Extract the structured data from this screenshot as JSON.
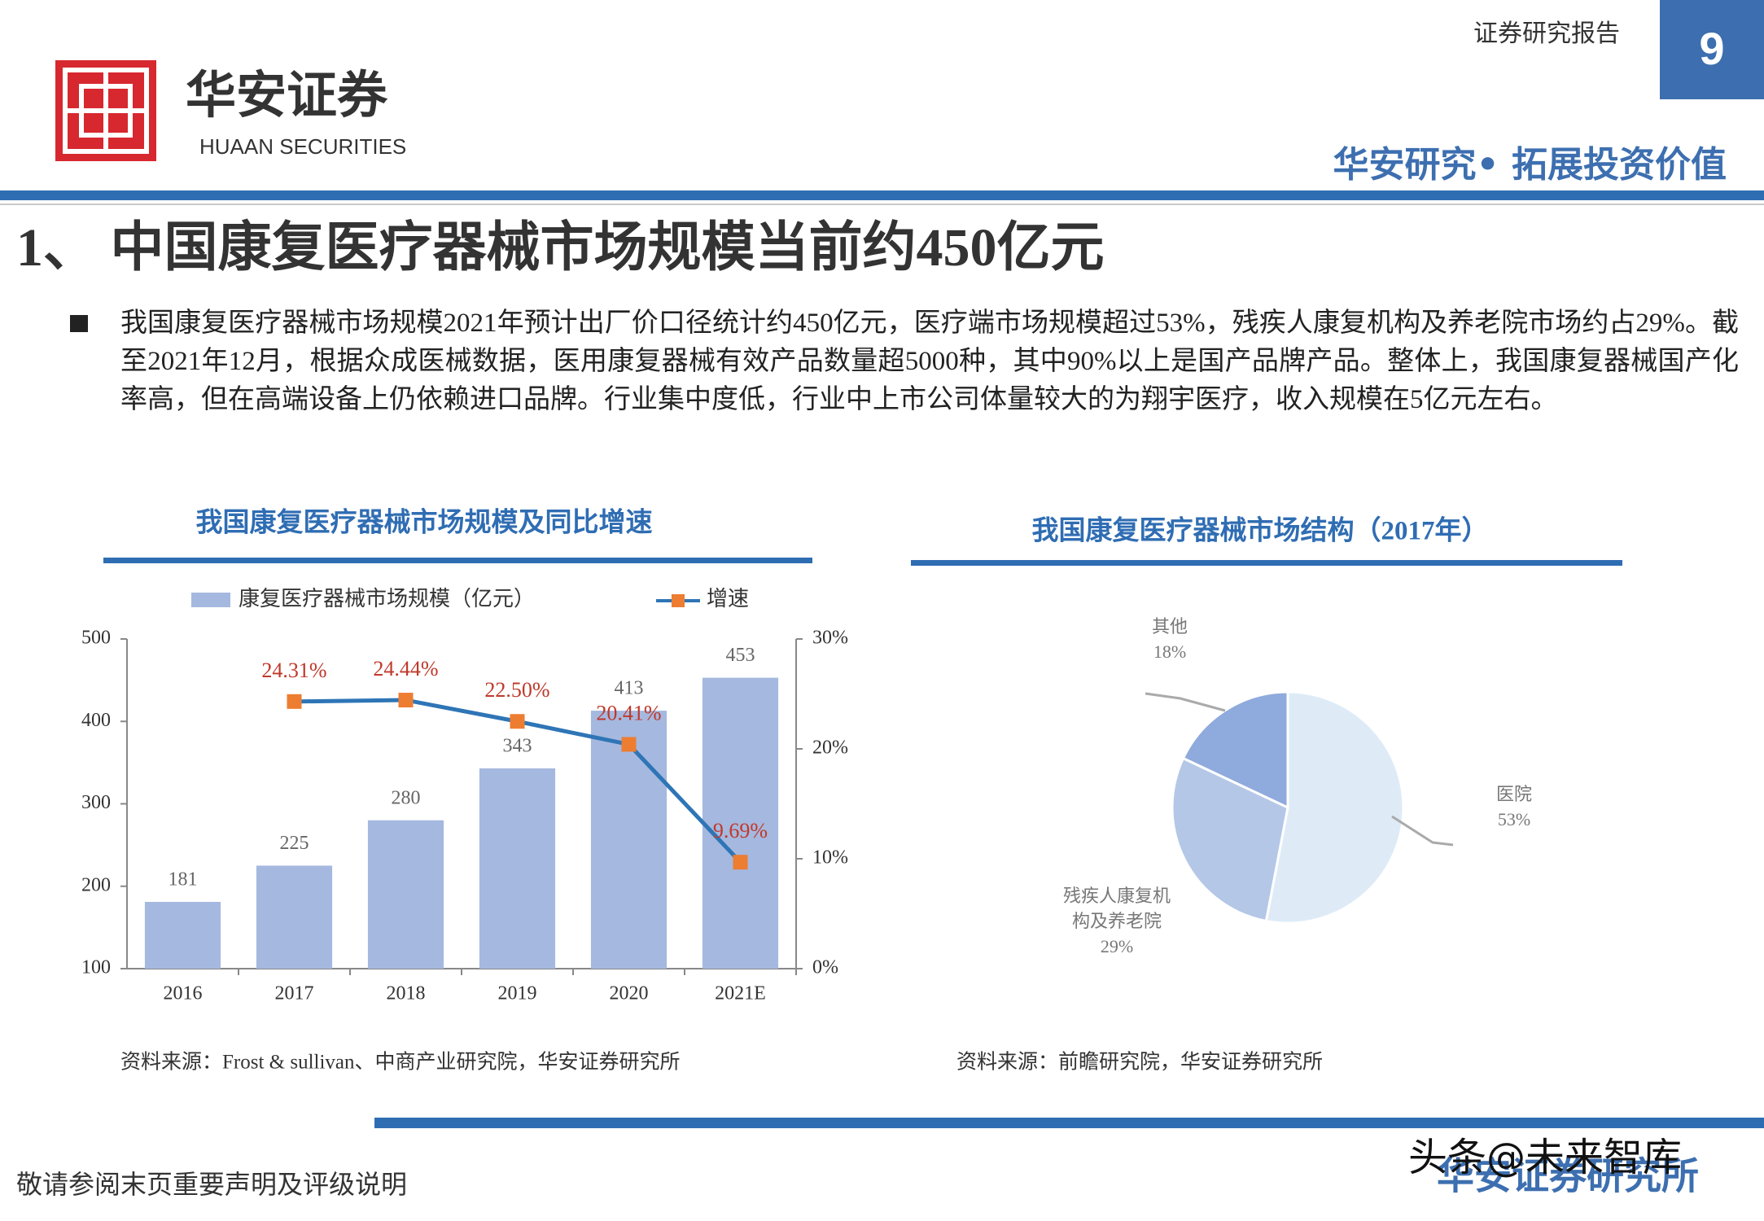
{
  "header": {
    "logo_cn": "华安证券",
    "logo_en": "HUAAN SECURITIES",
    "report_type": "证券研究报告",
    "page_number": "9",
    "slogan": "华安研究• 拓展投资价值"
  },
  "title": "1、 中国康复医疗器械市场规模当前约450亿元",
  "bullet": "我国康复医疗器械市场规模2021年预计出厂价口径统计约450亿元，医疗端市场规模超过53%，残疾人康复机构及养老院市场约占29%。截至2021年12月，根据众成医械数据，医用康复器械有效产品数量超5000种，其中90%以上是国产品牌产品。整体上，我国康复器械国产化率高，但在高端设备上仍依赖进口品牌。行业集中度低，行业中上市公司体量较大的为翔宇医疗，收入规模在5亿元左右。",
  "chart_data": [
    {
      "type": "bar",
      "title": "我国康复医疗器械市场规模及同比增速",
      "categories": [
        "2016",
        "2017",
        "2018",
        "2019",
        "2020",
        "2021E"
      ],
      "series": [
        {
          "name": "康复医疗器械市场规模（亿元）",
          "type": "bar",
          "color": "#a5b8df",
          "values": [
            181,
            225,
            280,
            343,
            413,
            453
          ]
        },
        {
          "name": "增速",
          "type": "line",
          "axis": "y2",
          "color": "#2e75b6",
          "marker_color": "#ed7d31",
          "values": [
            null,
            24.31,
            24.44,
            22.5,
            20.41,
            9.69
          ],
          "value_labels": [
            null,
            "24.31%",
            "24.44%",
            "22.50%",
            "20.41%",
            "9.69%"
          ]
        }
      ],
      "ylim": [
        100,
        500
      ],
      "yticks": [
        100,
        200,
        300,
        400,
        500
      ],
      "y2lim": [
        0,
        30
      ],
      "y2ticks": [
        {
          "value": 0,
          "label": "0%"
        },
        {
          "value": 10,
          "label": "10%"
        },
        {
          "value": 20,
          "label": "20%"
        },
        {
          "value": 30,
          "label": "30%"
        }
      ],
      "source": "资料来源：Frost & sullivan、中商产业研究院，华安证券研究所"
    },
    {
      "type": "pie",
      "title": "我国康复医疗器械市场结构（2017年）",
      "categories": [
        "医院",
        "残疾人康复机构及养老院",
        "其他"
      ],
      "values": [
        53,
        29,
        18
      ],
      "value_labels": [
        "53%",
        "29%",
        "18%"
      ],
      "colors": [
        "#deebf7",
        "#b4c7e7",
        "#8faadc"
      ],
      "source": "资料来源：前瞻研究院，华安证券研究所"
    }
  ],
  "footer": {
    "disclaimer": "敬请参阅末页重要声明及评级说明",
    "org": "华安证券研究所",
    "watermark": "头条@未来智库"
  }
}
